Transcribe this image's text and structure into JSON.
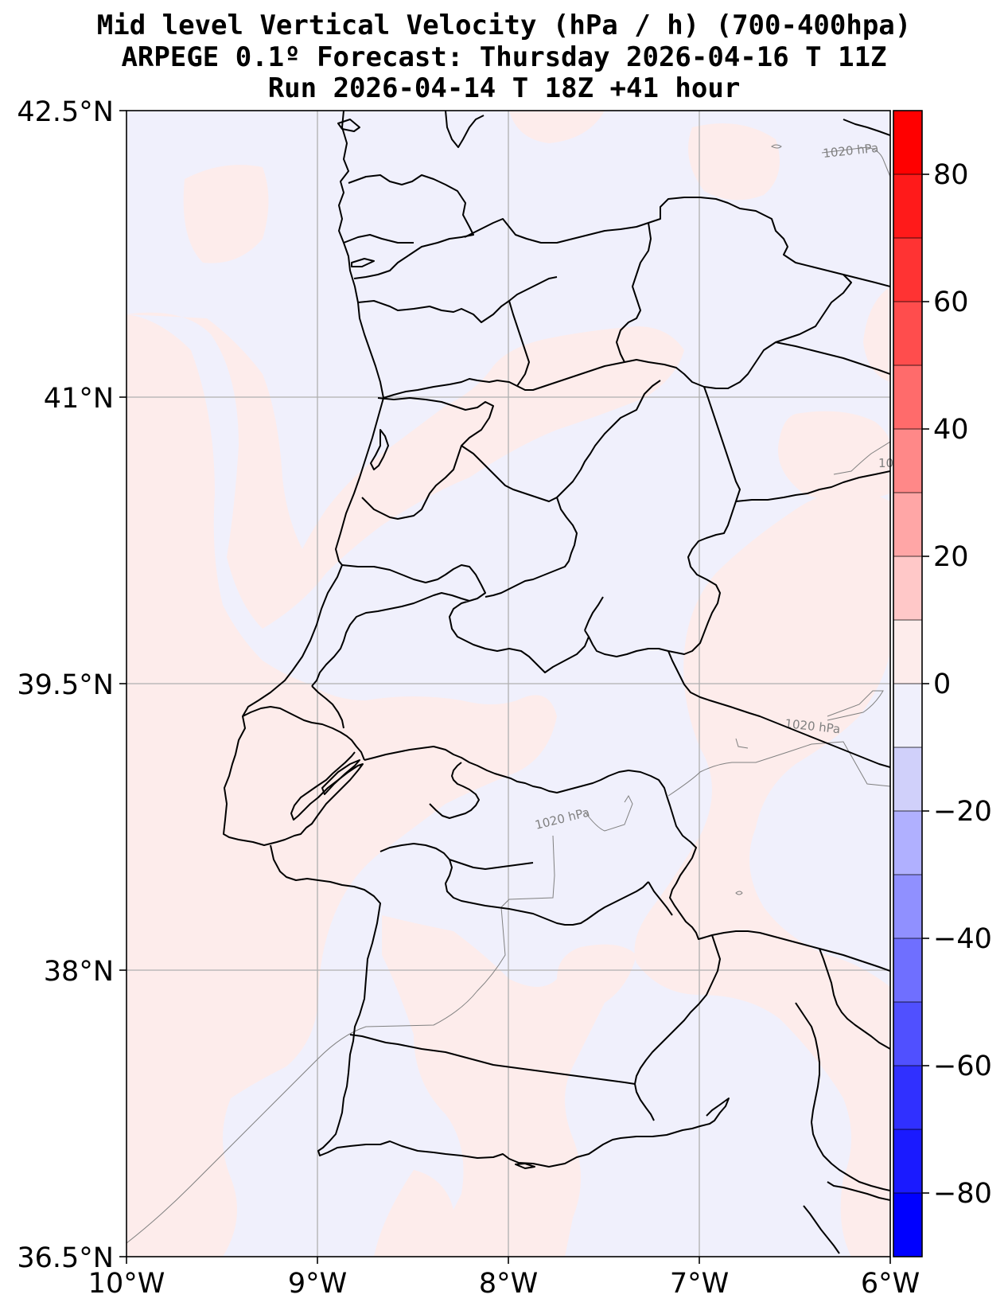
{
  "title": {
    "line1": "Mid level Vertical Velocity (hPa / h)  (700-400hpa)",
    "line2": "ARPEGE 0.1º Forecast: Thursday 2026-04-16 T 11Z",
    "line3": "Run 2026-04-14 T 18Z +41 hour"
  },
  "map": {
    "lon_range": [
      -10,
      -6
    ],
    "lat_range": [
      36.5,
      42.5
    ],
    "grid": true,
    "x_ticks": [
      {
        "value": -10,
        "label": "10°W"
      },
      {
        "value": -9,
        "label": "9°W"
      },
      {
        "value": -8,
        "label": "8°W"
      },
      {
        "value": -7,
        "label": "7°W"
      },
      {
        "value": -6,
        "label": "6°W"
      }
    ],
    "y_ticks": [
      {
        "value": 42.5,
        "label": "42.5°N"
      },
      {
        "value": 41,
        "label": "41°N"
      },
      {
        "value": 39.5,
        "label": "39.5°N"
      },
      {
        "value": 38,
        "label": "38°N"
      },
      {
        "value": 36.5,
        "label": "36.5°N"
      }
    ],
    "contour_labels": [
      "1020 hPa",
      "1020 hPa",
      "1020 hPa",
      "10"
    ],
    "colors": {
      "weak_descent": "#f0f0fc",
      "weak_ascent": "#fdeceb",
      "coast": "#000000",
      "isobar": "#808080",
      "grid": "#b0b0b0"
    }
  },
  "colorbar": {
    "range": [
      -90,
      90
    ],
    "ticks": [
      {
        "value": 80,
        "label": "80"
      },
      {
        "value": 60,
        "label": "60"
      },
      {
        "value": 40,
        "label": "40"
      },
      {
        "value": 20,
        "label": "20"
      },
      {
        "value": 0,
        "label": "0"
      },
      {
        "value": -20,
        "label": "−20"
      },
      {
        "value": -40,
        "label": "−40"
      },
      {
        "value": -60,
        "label": "−60"
      },
      {
        "value": -80,
        "label": "−80"
      }
    ],
    "bands": [
      {
        "from": 80,
        "to": 90,
        "color": "#ff0000"
      },
      {
        "from": 70,
        "to": 80,
        "color": "#ff1a1a"
      },
      {
        "from": 60,
        "to": 70,
        "color": "#ff3333"
      },
      {
        "from": 50,
        "to": 60,
        "color": "#ff4d4d"
      },
      {
        "from": 40,
        "to": 50,
        "color": "#ff6b6b"
      },
      {
        "from": 30,
        "to": 40,
        "color": "#ff8888"
      },
      {
        "from": 20,
        "to": 30,
        "color": "#ffa6a6"
      },
      {
        "from": 10,
        "to": 20,
        "color": "#ffc8c8"
      },
      {
        "from": 0,
        "to": 10,
        "color": "#fdeceb"
      },
      {
        "from": -10,
        "to": 0,
        "color": "#f0f0fc"
      },
      {
        "from": -20,
        "to": -10,
        "color": "#d0d0fa"
      },
      {
        "from": -30,
        "to": -20,
        "color": "#b0b0ff"
      },
      {
        "from": -40,
        "to": -30,
        "color": "#9090ff"
      },
      {
        "from": -50,
        "to": -40,
        "color": "#6f6fff"
      },
      {
        "from": -60,
        "to": -50,
        "color": "#5050ff"
      },
      {
        "from": -70,
        "to": -60,
        "color": "#3030ff"
      },
      {
        "from": -80,
        "to": -70,
        "color": "#1a1aff"
      },
      {
        "from": -90,
        "to": -80,
        "color": "#0000ff"
      }
    ]
  }
}
